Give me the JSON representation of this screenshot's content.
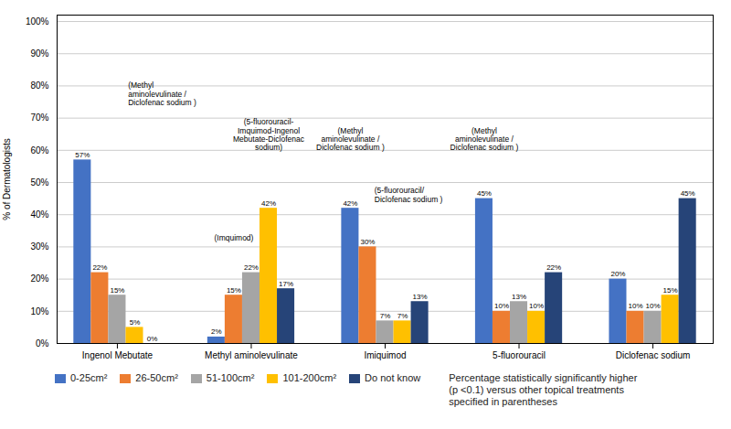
{
  "chart_data": {
    "type": "bar",
    "categories": [
      "Ingenol Mebutate",
      "Methyl aminolevulinate",
      "Imiquimod",
      "5-fluorouracil",
      "Diclofenac sodium"
    ],
    "series": [
      {
        "name": "0-25cm²",
        "color": "#4472C4",
        "values": [
          57,
          2,
          42,
          45,
          20
        ],
        "value_labels": [
          "57%",
          "2%",
          "42%",
          "45%",
          "20%"
        ]
      },
      {
        "name": "26-50cm²",
        "color": "#ED7D31",
        "values": [
          22,
          15,
          30,
          10,
          10
        ],
        "value_labels": [
          "22%",
          "15%",
          "30%",
          "10%",
          "10%"
        ]
      },
      {
        "name": "51-100cm²",
        "color": "#A5A5A5",
        "values": [
          15,
          22,
          7,
          13,
          10
        ],
        "value_labels": [
          "15%",
          "22%",
          "7%",
          "13%",
          "10%"
        ]
      },
      {
        "name": "101-200cm²",
        "color": "#FFC000",
        "values": [
          5,
          42,
          7,
          10,
          15
        ],
        "value_labels": [
          "5%",
          "42%",
          "7%",
          "10%",
          "15%"
        ]
      },
      {
        "name": "Do not know",
        "color": "#264478",
        "values": [
          0,
          17,
          13,
          22,
          45
        ],
        "value_labels": [
          "0%",
          "17%",
          "13%",
          "22%",
          "45%"
        ]
      }
    ],
    "ylabel": "% of Dermatologists",
    "ylim": [
      0,
      102
    ],
    "yticks": [
      {
        "value": 0,
        "label": "0%"
      },
      {
        "value": 10,
        "label": "10%"
      },
      {
        "value": 20,
        "label": "20%"
      },
      {
        "value": 30,
        "label": "30%"
      },
      {
        "value": 40,
        "label": "40%"
      },
      {
        "value": 50,
        "label": "50%"
      },
      {
        "value": 60,
        "label": "60%"
      },
      {
        "value": 70,
        "label": "70%"
      },
      {
        "value": 80,
        "label": "80%"
      },
      {
        "value": 90,
        "label": "90%"
      },
      {
        "value": 100,
        "label": "100%"
      }
    ],
    "grid": true,
    "data_labels": true,
    "legend": "bottom",
    "annotation_marker": {
      "marker": "plus",
      "color": "#00B050",
      "label": "Percentage statistically significantly higher\n(p <0.1) versus other topical treatments\nspecified in parentheses"
    },
    "annotations": [
      {
        "category": "Ingenol Mebutate",
        "series": "0-25cm²",
        "marker_y": 65,
        "text": "(Methyl\naminolevulinate /\nDiclofenac sodium )",
        "text_y": 74
      },
      {
        "category": "Methyl aminolevulinate",
        "series": "101-200cm²",
        "marker_y": 50,
        "text": "(5-fluorouracil-\nImquimod-Ingenol\nMebutate-Diclofenac\nsodium)",
        "text_y": 60
      },
      {
        "category": "Methyl aminolevulinate",
        "series": "26-50cm²",
        "marker_y": 30,
        "text": "(Imquimod)",
        "text_y": 32
      },
      {
        "category": "Imiquimod",
        "series": "0-25cm²",
        "marker_y": 51,
        "text": "(Methyl\naminolevulinate /\nDiclofenac sodium )",
        "text_y": 60
      },
      {
        "category": "Imiquimod",
        "series": "26-50cm²",
        "marker_y": 38,
        "text": "(5-fluorouracil/\nDiclofenac sodium )",
        "text_y": 44
      },
      {
        "category": "5-fluorouracil",
        "series": "0-25cm²",
        "marker_y": 52,
        "text": "(Methyl\naminolevulinate /\nDiclofenac sodium )",
        "text_y": 60
      }
    ]
  }
}
